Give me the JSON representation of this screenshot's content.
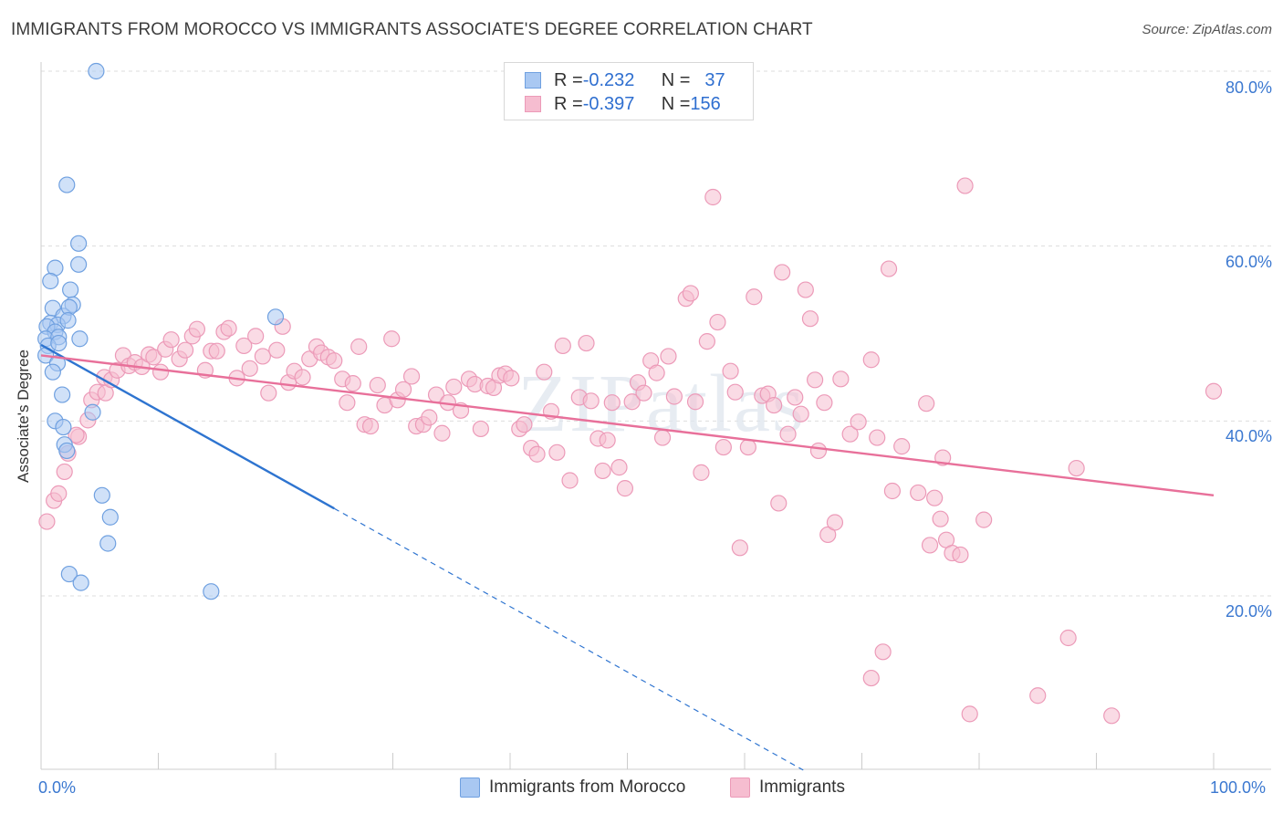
{
  "header": {
    "title": "IMMIGRANTS FROM MOROCCO VS IMMIGRANTS ASSOCIATE'S DEGREE CORRELATION CHART",
    "source": "Source: ZipAtlas.com"
  },
  "watermark": "ZIPatlas",
  "legend": {
    "row1": {
      "r_label": "R = ",
      "r_value": "-0.232",
      "n_label": "N = ",
      "n_value": "37"
    },
    "row2": {
      "r_label": "R = ",
      "r_value": "-0.397",
      "n_label": "N = ",
      "n_value": "156"
    }
  },
  "colors": {
    "morocco_fill": "#a9c8f2",
    "morocco_stroke": "#6fa0e0",
    "morocco_line": "#2e74d0",
    "immig_fill": "#f6bdd0",
    "immig_stroke": "#ec9ab8",
    "immig_line": "#e8709a",
    "tick_text": "#3b78d0",
    "grid": "#dddddd"
  },
  "chart_data": {
    "type": "scatter",
    "title": "IMMIGRANTS FROM MOROCCO VS IMMIGRANTS ASSOCIATE'S DEGREE CORRELATION CHART",
    "xlabel": "",
    "ylabel": "Associate's Degree",
    "xlim": [
      0,
      100
    ],
    "ylim": [
      0,
      82
    ],
    "x_tick_labels": [
      "0.0%",
      "100.0%"
    ],
    "y_tick_labels": [
      "20.0%",
      "40.0%",
      "60.0%",
      "80.0%"
    ],
    "y_ticks": [
      20,
      40,
      60,
      80
    ],
    "grid": true,
    "legend_position": "bottom",
    "series": [
      {
        "name": "Immigrants from Morocco",
        "r": -0.232,
        "n": 37,
        "trend": {
          "x0": 0,
          "y0": 48.7,
          "x1": 25,
          "y1": 30.0,
          "dashed_to_x": 65
        },
        "points": [
          [
            4.7,
            80.0
          ],
          [
            2.2,
            67.0
          ],
          [
            3.2,
            60.3
          ],
          [
            3.2,
            57.9
          ],
          [
            1.2,
            57.5
          ],
          [
            0.8,
            56.0
          ],
          [
            2.5,
            55.0
          ],
          [
            2.7,
            53.3
          ],
          [
            1.0,
            52.9
          ],
          [
            1.9,
            52.0
          ],
          [
            2.4,
            53.0
          ],
          [
            20.0,
            51.9
          ],
          [
            0.8,
            51.2
          ],
          [
            1.4,
            51.0
          ],
          [
            2.3,
            51.5
          ],
          [
            0.5,
            50.8
          ],
          [
            1.2,
            50.2
          ],
          [
            0.4,
            49.4
          ],
          [
            1.5,
            49.6
          ],
          [
            3.3,
            49.4
          ],
          [
            0.6,
            48.6
          ],
          [
            1.5,
            48.9
          ],
          [
            0.4,
            47.5
          ],
          [
            1.4,
            46.6
          ],
          [
            1.0,
            45.6
          ],
          [
            1.8,
            43.0
          ],
          [
            4.4,
            41.0
          ],
          [
            1.2,
            40.0
          ],
          [
            1.9,
            39.3
          ],
          [
            2.0,
            37.3
          ],
          [
            2.2,
            36.6
          ],
          [
            5.2,
            31.5
          ],
          [
            5.9,
            29.0
          ],
          [
            5.7,
            26.0
          ],
          [
            2.4,
            22.5
          ],
          [
            3.4,
            21.5
          ],
          [
            14.5,
            20.5
          ]
        ]
      },
      {
        "name": "Immigrants",
        "r": -0.397,
        "n": 156,
        "trend": {
          "x0": 0,
          "y0": 47.5,
          "x1": 100,
          "y1": 31.5
        },
        "points": [
          [
            0.5,
            28.5
          ],
          [
            1.1,
            30.9
          ],
          [
            1.5,
            31.7
          ],
          [
            2.0,
            34.2
          ],
          [
            2.3,
            36.3
          ],
          [
            3.2,
            38.2
          ],
          [
            3.0,
            38.4
          ],
          [
            4.0,
            40.1
          ],
          [
            4.3,
            42.4
          ],
          [
            4.8,
            43.3
          ],
          [
            5.5,
            43.2
          ],
          [
            5.4,
            45.0
          ],
          [
            6.0,
            44.7
          ],
          [
            6.5,
            45.8
          ],
          [
            7.0,
            47.5
          ],
          [
            7.5,
            46.3
          ],
          [
            8.0,
            46.7
          ],
          [
            8.6,
            46.2
          ],
          [
            9.2,
            47.6
          ],
          [
            9.6,
            47.3
          ],
          [
            10.2,
            45.6
          ],
          [
            10.6,
            48.2
          ],
          [
            11.1,
            49.3
          ],
          [
            11.8,
            47.1
          ],
          [
            12.3,
            48.1
          ],
          [
            12.9,
            49.7
          ],
          [
            13.3,
            50.5
          ],
          [
            14.0,
            45.8
          ],
          [
            14.5,
            48.0
          ],
          [
            15.0,
            48.0
          ],
          [
            15.6,
            50.2
          ],
          [
            16.0,
            50.6
          ],
          [
            16.7,
            44.9
          ],
          [
            17.3,
            48.6
          ],
          [
            17.8,
            46.0
          ],
          [
            18.3,
            49.7
          ],
          [
            18.9,
            47.4
          ],
          [
            19.4,
            43.2
          ],
          [
            20.1,
            48.1
          ],
          [
            20.6,
            50.8
          ],
          [
            21.1,
            44.4
          ],
          [
            21.6,
            45.7
          ],
          [
            22.3,
            45.0
          ],
          [
            22.9,
            47.1
          ],
          [
            23.5,
            48.5
          ],
          [
            23.9,
            47.8
          ],
          [
            24.5,
            47.3
          ],
          [
            25.0,
            46.9
          ],
          [
            25.7,
            44.8
          ],
          [
            26.1,
            42.1
          ],
          [
            26.6,
            44.3
          ],
          [
            27.1,
            48.5
          ],
          [
            27.6,
            39.6
          ],
          [
            28.1,
            39.4
          ],
          [
            28.7,
            44.1
          ],
          [
            29.3,
            41.8
          ],
          [
            29.9,
            49.4
          ],
          [
            30.4,
            42.4
          ],
          [
            30.9,
            43.6
          ],
          [
            31.6,
            45.1
          ],
          [
            32.0,
            39.4
          ],
          [
            32.6,
            39.6
          ],
          [
            33.1,
            40.4
          ],
          [
            33.7,
            43.0
          ],
          [
            34.2,
            38.6
          ],
          [
            34.7,
            42.1
          ],
          [
            35.2,
            43.9
          ],
          [
            35.8,
            41.2
          ],
          [
            36.5,
            44.8
          ],
          [
            37.0,
            44.2
          ],
          [
            37.5,
            39.1
          ],
          [
            38.1,
            44.0
          ],
          [
            38.6,
            43.8
          ],
          [
            39.1,
            45.2
          ],
          [
            39.6,
            45.4
          ],
          [
            40.1,
            44.9
          ],
          [
            40.8,
            39.1
          ],
          [
            41.2,
            39.6
          ],
          [
            41.8,
            36.9
          ],
          [
            42.3,
            36.2
          ],
          [
            42.9,
            45.6
          ],
          [
            43.5,
            41.1
          ],
          [
            44.0,
            36.4
          ],
          [
            44.5,
            48.6
          ],
          [
            45.1,
            33.2
          ],
          [
            45.9,
            42.7
          ],
          [
            46.5,
            48.9
          ],
          [
            46.9,
            42.3
          ],
          [
            47.5,
            38.0
          ],
          [
            47.9,
            34.3
          ],
          [
            48.3,
            37.8
          ],
          [
            48.7,
            42.1
          ],
          [
            49.3,
            34.7
          ],
          [
            49.8,
            32.3
          ],
          [
            50.4,
            42.2
          ],
          [
            50.9,
            44.4
          ],
          [
            51.4,
            43.2
          ],
          [
            52.0,
            46.9
          ],
          [
            52.5,
            45.5
          ],
          [
            53.0,
            38.1
          ],
          [
            53.5,
            47.4
          ],
          [
            54.0,
            42.8
          ],
          [
            55.0,
            54.0
          ],
          [
            55.4,
            54.6
          ],
          [
            55.8,
            42.2
          ],
          [
            56.3,
            34.1
          ],
          [
            56.8,
            49.1
          ],
          [
            57.3,
            65.6
          ],
          [
            57.7,
            51.3
          ],
          [
            58.2,
            37.0
          ],
          [
            58.8,
            45.7
          ],
          [
            59.2,
            43.3
          ],
          [
            59.6,
            25.5
          ],
          [
            60.3,
            37.0
          ],
          [
            60.8,
            54.2
          ],
          [
            61.5,
            42.9
          ],
          [
            62.0,
            43.1
          ],
          [
            62.5,
            41.8
          ],
          [
            62.9,
            30.6
          ],
          [
            63.2,
            57.0
          ],
          [
            63.7,
            38.5
          ],
          [
            64.3,
            42.7
          ],
          [
            64.8,
            40.8
          ],
          [
            65.2,
            55.0
          ],
          [
            65.6,
            51.7
          ],
          [
            66.0,
            44.7
          ],
          [
            66.3,
            36.6
          ],
          [
            66.8,
            42.1
          ],
          [
            67.1,
            27.0
          ],
          [
            67.7,
            28.4
          ],
          [
            68.2,
            44.8
          ],
          [
            69.0,
            38.5
          ],
          [
            69.7,
            39.9
          ],
          [
            70.8,
            47.0
          ],
          [
            71.3,
            38.1
          ],
          [
            71.8,
            13.6
          ],
          [
            70.8,
            10.6
          ],
          [
            72.3,
            57.4
          ],
          [
            72.6,
            32.0
          ],
          [
            73.4,
            37.1
          ],
          [
            74.8,
            31.8
          ],
          [
            75.5,
            42.0
          ],
          [
            75.8,
            25.8
          ],
          [
            76.2,
            31.2
          ],
          [
            76.7,
            28.8
          ],
          [
            76.9,
            35.8
          ],
          [
            77.2,
            26.4
          ],
          [
            77.7,
            24.9
          ],
          [
            79.2,
            6.5
          ],
          [
            78.4,
            24.7
          ],
          [
            78.8,
            66.9
          ],
          [
            80.4,
            28.7
          ],
          [
            85.0,
            8.6
          ],
          [
            87.6,
            15.2
          ],
          [
            88.3,
            34.6
          ],
          [
            91.3,
            6.3
          ],
          [
            100.0,
            43.4
          ]
        ]
      }
    ]
  }
}
